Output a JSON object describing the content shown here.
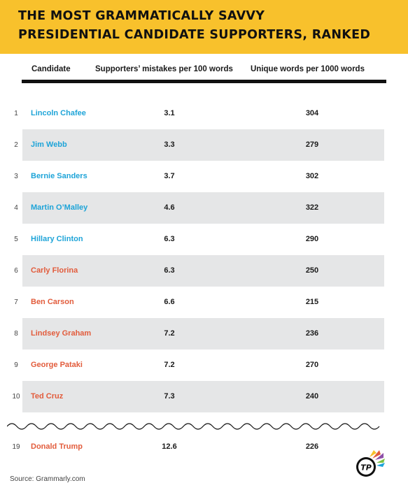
{
  "title": {
    "line1": "THE MOST GRAMMATICALLY SAVVY",
    "line2": "PRESIDENTIAL CANDIDATE SUPPORTERS, RANKED"
  },
  "columns": {
    "candidate": "Candidate",
    "mistakes": "Supporters’ mistakes per 100 words",
    "unique": "Unique words per 1000 words"
  },
  "source": "Source: Grammarly.com",
  "logo_text": "TP",
  "colors": {
    "header": "#f8c12c",
    "democrat": "#1ea4d8",
    "republican": "#e25c3c",
    "shade": "#e5e6e7"
  },
  "chart_data": {
    "type": "table",
    "columns": [
      "Candidate",
      "Supporters’ mistakes per 100 words",
      "Unique words per 1000 words"
    ],
    "rows": [
      {
        "rank": "1",
        "name": "Lincoln Chafee",
        "party": "dem",
        "mistakes": "3.1",
        "unique": "304"
      },
      {
        "rank": "2",
        "name": "Jim Webb",
        "party": "dem",
        "mistakes": "3.3",
        "unique": "279"
      },
      {
        "rank": "3",
        "name": "Bernie Sanders",
        "party": "dem",
        "mistakes": "3.7",
        "unique": "302"
      },
      {
        "rank": "4",
        "name": "Martin O’Malley",
        "party": "dem",
        "mistakes": "4.6",
        "unique": "322"
      },
      {
        "rank": "5",
        "name": "Hillary Clinton",
        "party": "dem",
        "mistakes": "6.3",
        "unique": "290"
      },
      {
        "rank": "6",
        "name": "Carly Florina",
        "party": "rep",
        "mistakes": "6.3",
        "unique": "250"
      },
      {
        "rank": "7",
        "name": "Ben Carson",
        "party": "rep",
        "mistakes": "6.6",
        "unique": "215"
      },
      {
        "rank": "8",
        "name": "Lindsey Graham",
        "party": "rep",
        "mistakes": "7.2",
        "unique": "236"
      },
      {
        "rank": "9",
        "name": "George Pataki",
        "party": "rep",
        "mistakes": "7.2",
        "unique": "270"
      },
      {
        "rank": "10",
        "name": "Ted Cruz",
        "party": "rep",
        "mistakes": "7.3",
        "unique": "240"
      }
    ],
    "extra_row": {
      "rank": "19",
      "name": "Donald Trump",
      "party": "rep",
      "mistakes": "12.6",
      "unique": "226"
    }
  }
}
